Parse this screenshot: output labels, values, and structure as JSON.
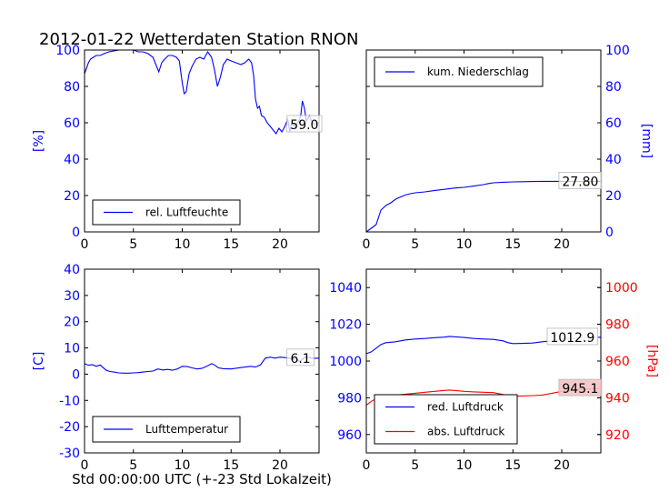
{
  "figure": {
    "title": "2012-01-22 Wetterdaten Station RNON",
    "xlabel": "Std 00:00:00 UTC (+-23 Std Lokalzeit)"
  },
  "chart_data": [
    {
      "id": "humidity",
      "type": "line",
      "ylabel": "[%]",
      "xlim": [
        0,
        24
      ],
      "ylim": [
        0,
        100
      ],
      "xticks": [
        0,
        5,
        10,
        15,
        20
      ],
      "yticks": [
        0,
        20,
        40,
        60,
        80,
        100
      ],
      "ytick_color": "#0000ff",
      "legend_position": "lower-left",
      "annotation": {
        "text": "59.0",
        "x": 22.5,
        "y": 59
      },
      "series": [
        {
          "name": "rel. Luftfeuchte",
          "color": "#0000ff",
          "points": [
            [
              0,
              87
            ],
            [
              0.2,
              90
            ],
            [
              0.4,
              93
            ],
            [
              0.6,
              95
            ],
            [
              0.9,
              96
            ],
            [
              1.2,
              97
            ],
            [
              1.6,
              97
            ],
            [
              2,
              98
            ],
            [
              2.5,
              99
            ],
            [
              3,
              99.5
            ],
            [
              3.5,
              100
            ],
            [
              4,
              100
            ],
            [
              4.5,
              100
            ],
            [
              5,
              100
            ],
            [
              5.5,
              99
            ],
            [
              6,
              99
            ],
            [
              6.5,
              98
            ],
            [
              7,
              96
            ],
            [
              7.3,
              92
            ],
            [
              7.6,
              88
            ],
            [
              7.9,
              93
            ],
            [
              8.2,
              95
            ],
            [
              8.6,
              97
            ],
            [
              9,
              97
            ],
            [
              9.4,
              96
            ],
            [
              9.7,
              94
            ],
            [
              10,
              82
            ],
            [
              10.2,
              76
            ],
            [
              10.4,
              77
            ],
            [
              10.7,
              87
            ],
            [
              11,
              91
            ],
            [
              11.4,
              95
            ],
            [
              11.8,
              96
            ],
            [
              12.2,
              95
            ],
            [
              12.6,
              99
            ],
            [
              13,
              96
            ],
            [
              13.3,
              89
            ],
            [
              13.6,
              80
            ],
            [
              13.9,
              85
            ],
            [
              14.2,
              92
            ],
            [
              14.6,
              95
            ],
            [
              15,
              94
            ],
            [
              15.5,
              93
            ],
            [
              16,
              92
            ],
            [
              16.4,
              93
            ],
            [
              16.8,
              95
            ],
            [
              17.1,
              93
            ],
            [
              17.3,
              86
            ],
            [
              17.5,
              73
            ],
            [
              17.7,
              68
            ],
            [
              17.9,
              69
            ],
            [
              18.1,
              64
            ],
            [
              18.4,
              63
            ],
            [
              18.7,
              60
            ],
            [
              19,
              58
            ],
            [
              19.3,
              56
            ],
            [
              19.6,
              54
            ],
            [
              19.9,
              57
            ],
            [
              20.2,
              55
            ],
            [
              20.5,
              58
            ],
            [
              20.8,
              62
            ],
            [
              21.0,
              55
            ],
            [
              21.2,
              60
            ],
            [
              21.5,
              58
            ],
            [
              21.8,
              60
            ],
            [
              22.1,
              63
            ],
            [
              22.3,
              72
            ],
            [
              22.5,
              68
            ],
            [
              22.7,
              61
            ],
            [
              23,
              64
            ],
            [
              23.3,
              60
            ],
            [
              23.6,
              59
            ],
            [
              23.9,
              59
            ]
          ]
        }
      ]
    },
    {
      "id": "precipitation",
      "type": "line",
      "ylabel": "[mm]",
      "xlim": [
        0,
        24
      ],
      "ylim": [
        0,
        100
      ],
      "xticks": [
        0,
        5,
        10,
        15,
        20
      ],
      "yticks": [
        0,
        20,
        40,
        60,
        80,
        100
      ],
      "ytick_color": "#0000ff",
      "yaxis_side": "right",
      "legend_position": "upper-left",
      "annotation": {
        "text": "27.80",
        "x": 21.9,
        "y": 27.8
      },
      "series": [
        {
          "name": "kum. Niederschlag",
          "color": "#0000ff",
          "points": [
            [
              0,
              0
            ],
            [
              0.5,
              2
            ],
            [
              1,
              4
            ],
            [
              1.5,
              12
            ],
            [
              2,
              14.5
            ],
            [
              2.5,
              16
            ],
            [
              3,
              18
            ],
            [
              3.5,
              19.2
            ],
            [
              4,
              20.3
            ],
            [
              4.5,
              21
            ],
            [
              5,
              21.5
            ],
            [
              6,
              22
            ],
            [
              7,
              22.8
            ],
            [
              8,
              23.4
            ],
            [
              9,
              24.1
            ],
            [
              10,
              24.5
            ],
            [
              11,
              25.2
            ],
            [
              12,
              26
            ],
            [
              12.5,
              26.6
            ],
            [
              13,
              27
            ],
            [
              14,
              27.3
            ],
            [
              15,
              27.5
            ],
            [
              16,
              27.6
            ],
            [
              17,
              27.7
            ],
            [
              18,
              27.8
            ],
            [
              24,
              27.8
            ]
          ]
        }
      ]
    },
    {
      "id": "temperature",
      "type": "line",
      "ylabel": "[C]",
      "xlim": [
        0,
        24
      ],
      "ylim": [
        -30,
        40
      ],
      "xticks": [
        0,
        5,
        10,
        15,
        20
      ],
      "yticks": [
        -30,
        -20,
        -10,
        0,
        10,
        20,
        30,
        40
      ],
      "ytick_color": "#0000ff",
      "legend_position": "lower-left",
      "annotation": {
        "text": "6.1",
        "x": 22.1,
        "y": 6.1
      },
      "series": [
        {
          "name": "Lufttemperatur",
          "color": "#0000ff",
          "points": [
            [
              0,
              4
            ],
            [
              0.4,
              3.4
            ],
            [
              0.8,
              3.6
            ],
            [
              1.2,
              3
            ],
            [
              1.6,
              3.5
            ],
            [
              1.9,
              2.5
            ],
            [
              2.2,
              1.5
            ],
            [
              2.6,
              1
            ],
            [
              3,
              0.8
            ],
            [
              3.5,
              0.5
            ],
            [
              4,
              0.4
            ],
            [
              4.5,
              0.4
            ],
            [
              5,
              0.5
            ],
            [
              5.5,
              0.6
            ],
            [
              6,
              0.8
            ],
            [
              6.5,
              1
            ],
            [
              7,
              1.2
            ],
            [
              7.5,
              2
            ],
            [
              8,
              1.6
            ],
            [
              8.5,
              1.8
            ],
            [
              9,
              1.5
            ],
            [
              9.5,
              2
            ],
            [
              10,
              3
            ],
            [
              10.5,
              2.9
            ],
            [
              11,
              2.4
            ],
            [
              11.5,
              2
            ],
            [
              12,
              2.2
            ],
            [
              12.5,
              3
            ],
            [
              13,
              4
            ],
            [
              13.3,
              3.5
            ],
            [
              13.7,
              2.4
            ],
            [
              14.2,
              2.1
            ],
            [
              15,
              2
            ],
            [
              16,
              2.5
            ],
            [
              17,
              3
            ],
            [
              17.5,
              2.7
            ],
            [
              18,
              3.5
            ],
            [
              18.5,
              6.1
            ],
            [
              19,
              6.5
            ],
            [
              19.5,
              6.1
            ],
            [
              20,
              6.5
            ],
            [
              20.5,
              6.3
            ],
            [
              21,
              6.1
            ],
            [
              21.3,
              5.5
            ],
            [
              21.6,
              6.1
            ],
            [
              22,
              4.8
            ],
            [
              22.3,
              5.6
            ],
            [
              22.6,
              6.6
            ],
            [
              23,
              6.3
            ],
            [
              23.4,
              6
            ],
            [
              24,
              6.1
            ]
          ]
        }
      ]
    },
    {
      "id": "pressure",
      "type": "line",
      "xlim": [
        0,
        24
      ],
      "ylim": [
        950,
        1050
      ],
      "xticks": [
        0,
        5,
        10,
        15,
        20
      ],
      "yticks": [
        960,
        980,
        1000,
        1020,
        1040
      ],
      "ytick_color": "#0000ff",
      "y2label": "[hPa]",
      "y2lim": [
        910,
        1010
      ],
      "y2ticks": [
        920,
        940,
        960,
        980,
        1000
      ],
      "y2tick_color": "#ff0000",
      "legend_position": "lower-left",
      "annotations": [
        {
          "text": "1012.9",
          "x": 21.1,
          "y": 1012.9,
          "axis": "left",
          "bg": "#ffffff"
        },
        {
          "text": "945.1",
          "x": 21.9,
          "y": 945.1,
          "axis": "right",
          "bg": "#f4c4c4"
        }
      ],
      "series": [
        {
          "name": "red. Luftdruck",
          "color": "#0000ff",
          "axis": "left",
          "points": [
            [
              0,
              1004
            ],
            [
              0.5,
              1005
            ],
            [
              1,
              1007
            ],
            [
              1.5,
              1009
            ],
            [
              2,
              1010
            ],
            [
              3,
              1010.5
            ],
            [
              4,
              1011.5
            ],
            [
              5,
              1012
            ],
            [
              6,
              1012.3
            ],
            [
              7,
              1012.7
            ],
            [
              8,
              1013
            ],
            [
              8.5,
              1013.4
            ],
            [
              9,
              1013.2
            ],
            [
              10,
              1012.8
            ],
            [
              11,
              1012.3
            ],
            [
              12,
              1012
            ],
            [
              13,
              1011.8
            ],
            [
              14,
              1011
            ],
            [
              14.5,
              1010
            ],
            [
              15,
              1009.5
            ],
            [
              16,
              1009.6
            ],
            [
              17,
              1009.8
            ],
            [
              18,
              1010.5
            ],
            [
              19,
              1011
            ],
            [
              20,
              1011.8
            ],
            [
              21,
              1012.3
            ],
            [
              22,
              1012.7
            ],
            [
              23,
              1013
            ],
            [
              24,
              1012.9
            ]
          ]
        },
        {
          "name": "abs. Luftdruck",
          "color": "#ff0000",
          "axis": "right",
          "points": [
            [
              0,
              936
            ],
            [
              0.5,
              938
            ],
            [
              1,
              939.5
            ],
            [
              1.5,
              940.5
            ],
            [
              2,
              941
            ],
            [
              3,
              941.5
            ],
            [
              4,
              942
            ],
            [
              5,
              942.5
            ],
            [
              6,
              943
            ],
            [
              7,
              943.5
            ],
            [
              8,
              944
            ],
            [
              8.5,
              944.2
            ],
            [
              9,
              944
            ],
            [
              10,
              943.5
            ],
            [
              11,
              943.2
            ],
            [
              12,
              943
            ],
            [
              13,
              942.8
            ],
            [
              14,
              941.8
            ],
            [
              14.5,
              941
            ],
            [
              15,
              940.8
            ],
            [
              16,
              941
            ],
            [
              17,
              941.2
            ],
            [
              18,
              941.5
            ],
            [
              19,
              942.5
            ],
            [
              20,
              943.5
            ],
            [
              21,
              944
            ],
            [
              22,
              944.5
            ],
            [
              23,
              944.8
            ],
            [
              24,
              945.1
            ]
          ]
        }
      ]
    }
  ]
}
